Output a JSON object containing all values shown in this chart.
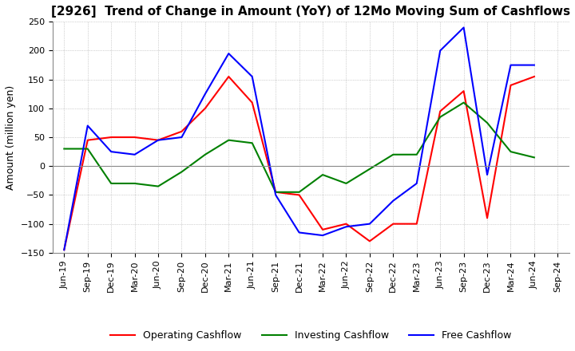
{
  "title": "[2926]  Trend of Change in Amount (YoY) of 12Mo Moving Sum of Cashflows",
  "ylabel": "Amount (million yen)",
  "ylim": [
    -150,
    250
  ],
  "yticks": [
    -150,
    -100,
    -50,
    0,
    50,
    100,
    150,
    200,
    250
  ],
  "x_labels": [
    "Jun-19",
    "Sep-19",
    "Dec-19",
    "Mar-20",
    "Jun-20",
    "Sep-20",
    "Dec-20",
    "Mar-21",
    "Jun-21",
    "Sep-21",
    "Dec-21",
    "Mar-22",
    "Jun-22",
    "Sep-22",
    "Dec-22",
    "Mar-23",
    "Jun-23",
    "Sep-23",
    "Dec-23",
    "Mar-24",
    "Jun-24",
    "Sep-24"
  ],
  "operating": [
    -145,
    45,
    50,
    50,
    45,
    60,
    100,
    155,
    110,
    -45,
    -50,
    -110,
    -100,
    -130,
    -100,
    -100,
    95,
    130,
    -90,
    140,
    155,
    null
  ],
  "investing": [
    30,
    30,
    -30,
    -30,
    -35,
    -10,
    20,
    45,
    40,
    -45,
    -45,
    -15,
    -30,
    -5,
    20,
    20,
    85,
    110,
    75,
    25,
    15,
    null
  ],
  "free": [
    -145,
    70,
    25,
    20,
    45,
    50,
    125,
    195,
    155,
    -50,
    -115,
    -120,
    -105,
    -100,
    -60,
    -30,
    200,
    240,
    -15,
    175,
    175,
    null
  ],
  "operating_color": "#ff0000",
  "investing_color": "#008000",
  "free_color": "#0000ff",
  "bg_color": "#ffffff",
  "grid_color": "#aaaaaa",
  "title_fontsize": 11,
  "legend_fontsize": 9,
  "ylabel_fontsize": 9,
  "tick_fontsize": 8,
  "linewidth": 1.5
}
